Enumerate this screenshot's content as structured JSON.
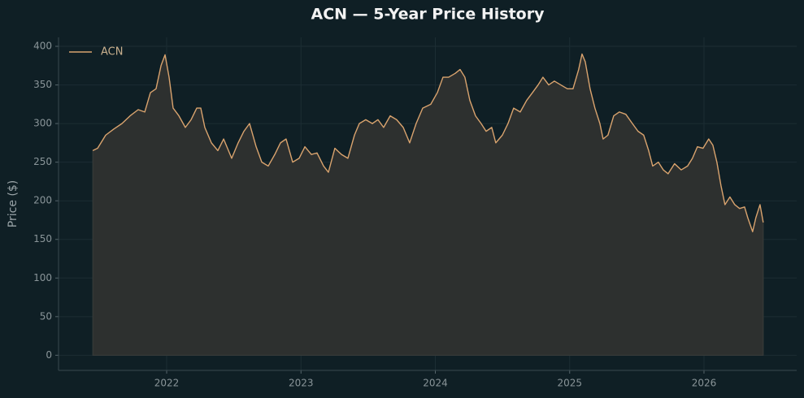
{
  "chart_data": {
    "type": "line",
    "title": "ACN — 5-Year Price History",
    "ylabel": "Price ($)",
    "x": [
      2021.45,
      2021.486,
      2021.546,
      2021.607,
      2021.667,
      2021.728,
      2021.788,
      2021.837,
      2021.879,
      2021.921,
      2021.958,
      2021.988,
      2022.018,
      2022.048,
      2022.091,
      2022.139,
      2022.182,
      2022.224,
      2022.254,
      2022.284,
      2022.333,
      2022.381,
      2022.424,
      2022.484,
      2022.532,
      2022.575,
      2022.617,
      2022.666,
      2022.708,
      2022.756,
      2022.805,
      2022.847,
      2022.889,
      2022.938,
      2022.986,
      2023.029,
      2023.077,
      2023.119,
      2023.168,
      2023.204,
      2023.252,
      2023.301,
      2023.349,
      2023.398,
      2023.434,
      2023.482,
      2023.531,
      2023.573,
      2023.615,
      2023.664,
      2023.712,
      2023.761,
      2023.809,
      2023.857,
      2023.906,
      2023.966,
      2024.015,
      2024.057,
      2024.099,
      2024.148,
      2024.184,
      2024.22,
      2024.257,
      2024.299,
      2024.341,
      2024.378,
      2024.42,
      2024.45,
      2024.499,
      2024.541,
      2024.583,
      2024.632,
      2024.68,
      2024.723,
      2024.765,
      2024.801,
      2024.844,
      2024.886,
      2024.934,
      2024.983,
      2025.025,
      2025.067,
      2025.092,
      2025.116,
      2025.152,
      2025.188,
      2025.225,
      2025.249,
      2025.285,
      2025.328,
      2025.37,
      2025.418,
      2025.467,
      2025.509,
      2025.551,
      2025.588,
      2025.618,
      2025.66,
      2025.697,
      2025.733,
      2025.781,
      2025.83,
      2025.878,
      2025.914,
      2025.951,
      2025.993,
      2026.035,
      2026.066,
      2026.096,
      2026.126,
      2026.156,
      2026.193,
      2026.229,
      2026.265,
      2026.302,
      2026.326,
      2026.362,
      2026.386,
      2026.417,
      2026.441
    ],
    "series": [
      {
        "name": "ACN",
        "color": "#d9a36e",
        "fill": "#2d302f",
        "values": [
          265,
          268,
          285,
          293,
          300,
          310,
          318,
          315,
          340,
          345,
          375,
          389,
          360,
          320,
          310,
          295,
          305,
          320,
          320,
          295,
          275,
          265,
          280,
          255,
          275,
          290,
          300,
          270,
          250,
          245,
          260,
          275,
          280,
          250,
          255,
          270,
          260,
          262,
          245,
          237,
          268,
          260,
          255,
          285,
          300,
          305,
          300,
          305,
          295,
          310,
          305,
          295,
          275,
          300,
          320,
          325,
          340,
          360,
          360,
          365,
          370,
          360,
          330,
          310,
          300,
          290,
          295,
          275,
          285,
          300,
          320,
          315,
          330,
          340,
          350,
          360,
          350,
          355,
          350,
          345,
          345,
          370,
          390,
          380,
          345,
          320,
          300,
          280,
          285,
          310,
          315,
          312,
          300,
          290,
          285,
          265,
          245,
          250,
          240,
          235,
          248,
          240,
          245,
          255,
          270,
          268,
          280,
          272,
          250,
          220,
          195,
          205,
          195,
          190,
          192,
          178,
          160,
          178,
          195,
          172
        ]
      }
    ],
    "xlim": [
      2021.195,
      2026.69
    ],
    "xticks": [
      2022,
      2023,
      2024,
      2025,
      2026
    ],
    "ylim": [
      -19.6,
      411.6
    ],
    "yticks": [
      0,
      50,
      100,
      150,
      200,
      250,
      300,
      350,
      400
    ],
    "grid": true,
    "legend": "upper left"
  }
}
